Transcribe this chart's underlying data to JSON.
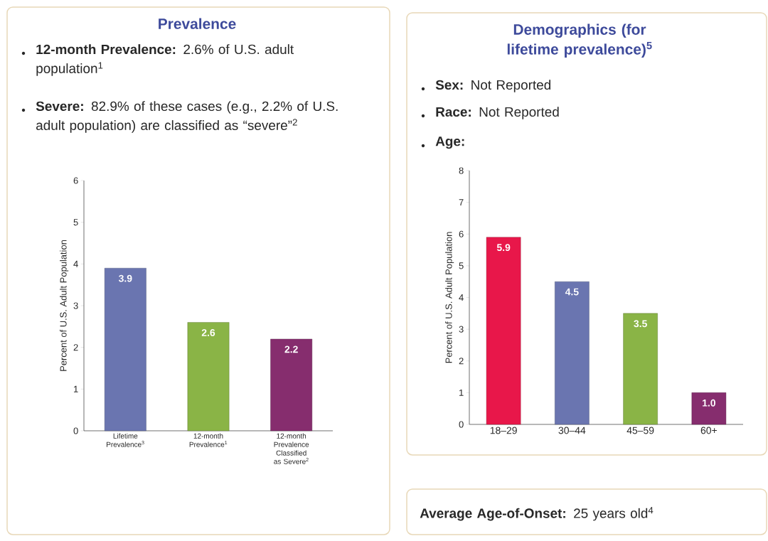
{
  "chart_data": [
    {
      "type": "bar",
      "title": "Prevalence",
      "annotations": [
        "**12-month Prevalence:** 2.6% of U.S. adult population$^{1}$",
        "**Severe:** 82.9% of these cases (e.g., 2.2% of U.S. adult population) are classified as “severe”$^{2}$"
      ],
      "ylabel": "Percent of U.S. Adult Population",
      "categories": [
        "Lifetime Prevalence$^{3}$",
        "12-month Prevalence$^{1}$",
        "12-month Prevalence Classified as Severe$^{2}$"
      ],
      "values": [
        3.9,
        2.6,
        2.2
      ],
      "colors": [
        "#6a75b0",
        "#8ab446",
        "#862d6e"
      ],
      "ylim": [
        0,
        6
      ],
      "yticks": [
        0,
        1,
        2,
        3,
        4,
        5,
        6
      ],
      "value_labels": [
        "3.9",
        "2.6",
        "2.2"
      ]
    },
    {
      "type": "bar",
      "title": "Demographics (for lifetime prevalence)$^{5}$",
      "annotations": [
        "**Sex:** Not Reported",
        "**Race:** Not Reported",
        "**Age:**",
        "**Average Age-of-Onset:** 25 years old$^{4}$"
      ],
      "ylabel": "Percent of U.S. Adult Population",
      "categories": [
        "18–29",
        "30–44",
        "45–59",
        "60+"
      ],
      "values": [
        5.9,
        4.5,
        3.5,
        1.0
      ],
      "colors": [
        "#e8174a",
        "#6a75b0",
        "#8ab446",
        "#862d6e"
      ],
      "ylim": [
        0,
        8
      ],
      "yticks": [
        0,
        1,
        2,
        3,
        4,
        5,
        6,
        7,
        8
      ],
      "value_labels": [
        "5.9",
        "4.5",
        "3.5",
        "1.0"
      ]
    }
  ]
}
